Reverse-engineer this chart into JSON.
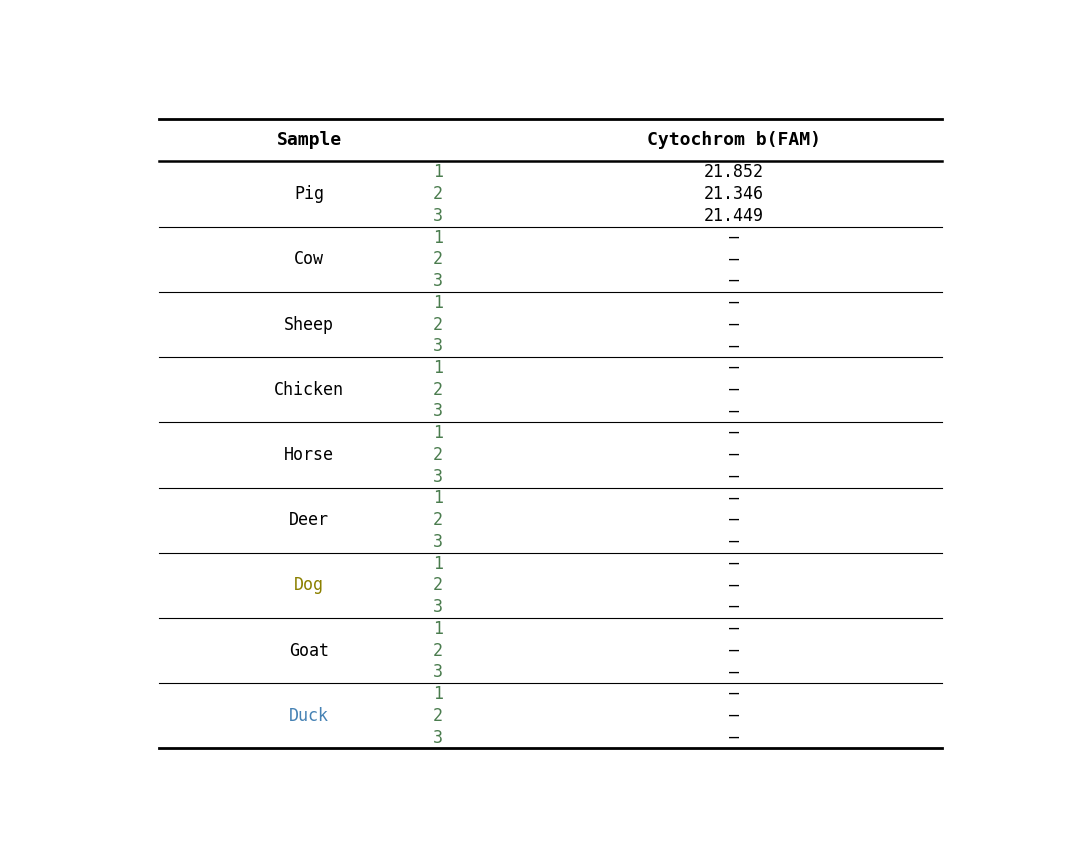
{
  "col_headers": [
    "Sample",
    "Cytochrom b(FAM)"
  ],
  "animals": [
    "Pig",
    "Cow",
    "Sheep",
    "Chicken",
    "Horse",
    "Deer",
    "Dog",
    "Goat",
    "Duck"
  ],
  "animal_colors": [
    "#000000",
    "#000000",
    "#000000",
    "#000000",
    "#000000",
    "#000000",
    "#8B8000",
    "#000000",
    "#4682B4"
  ],
  "replicates": [
    1,
    2,
    3
  ],
  "data": {
    "Pig": [
      "21.852",
      "21.346",
      "21.449"
    ],
    "Cow": [
      "–",
      "–",
      "–"
    ],
    "Sheep": [
      "–",
      "–",
      "–"
    ],
    "Chicken": [
      "–",
      "–",
      "–"
    ],
    "Horse": [
      "–",
      "–",
      "–"
    ],
    "Deer": [
      "–",
      "–",
      "–"
    ],
    "Dog": [
      "–",
      "–",
      "–"
    ],
    "Goat": [
      "–",
      "–",
      "–"
    ],
    "Duck": [
      "–",
      "–",
      "–"
    ]
  },
  "replicate_colors": {
    "Pig": [
      "#4a7c4e",
      "#4a7c4e",
      "#4a7c4e"
    ],
    "Cow": [
      "#4a7c4e",
      "#4a7c4e",
      "#4a7c4e"
    ],
    "Sheep": [
      "#4a7c4e",
      "#4a7c4e",
      "#4a7c4e"
    ],
    "Chicken": [
      "#4a7c4e",
      "#4a7c4e",
      "#4a7c4e"
    ],
    "Horse": [
      "#4a7c4e",
      "#4a7c4e",
      "#4a7c4e"
    ],
    "Deer": [
      "#4a7c4e",
      "#4a7c4e",
      "#4a7c4e"
    ],
    "Dog": [
      "#4a7c4e",
      "#4a7c4e",
      "#4a7c4e"
    ],
    "Goat": [
      "#4a7c4e",
      "#4a7c4e",
      "#4a7c4e"
    ],
    "Duck": [
      "#4a7c4e",
      "#4a7c4e",
      "#4a7c4e"
    ]
  },
  "data_colors": {
    "Pig": [
      "#000000",
      "#000000",
      "#000000"
    ],
    "Cow": [
      "#000000",
      "#000000",
      "#000000"
    ],
    "Sheep": [
      "#000000",
      "#000000",
      "#000000"
    ],
    "Chicken": [
      "#000000",
      "#000000",
      "#000000"
    ],
    "Horse": [
      "#000000",
      "#000000",
      "#000000"
    ],
    "Deer": [
      "#000000",
      "#000000",
      "#000000"
    ],
    "Dog": [
      "#000000",
      "#000000",
      "#000000"
    ],
    "Goat": [
      "#000000",
      "#000000",
      "#000000"
    ],
    "Duck": [
      "#000000",
      "#000000",
      "#000000"
    ]
  },
  "header_color": "#000000",
  "background_color": "#ffffff",
  "line_color": "#000000",
  "fig_width": 10.74,
  "fig_height": 8.52,
  "header_fontsize": 13,
  "cell_fontsize": 12,
  "font_family": "monospace"
}
